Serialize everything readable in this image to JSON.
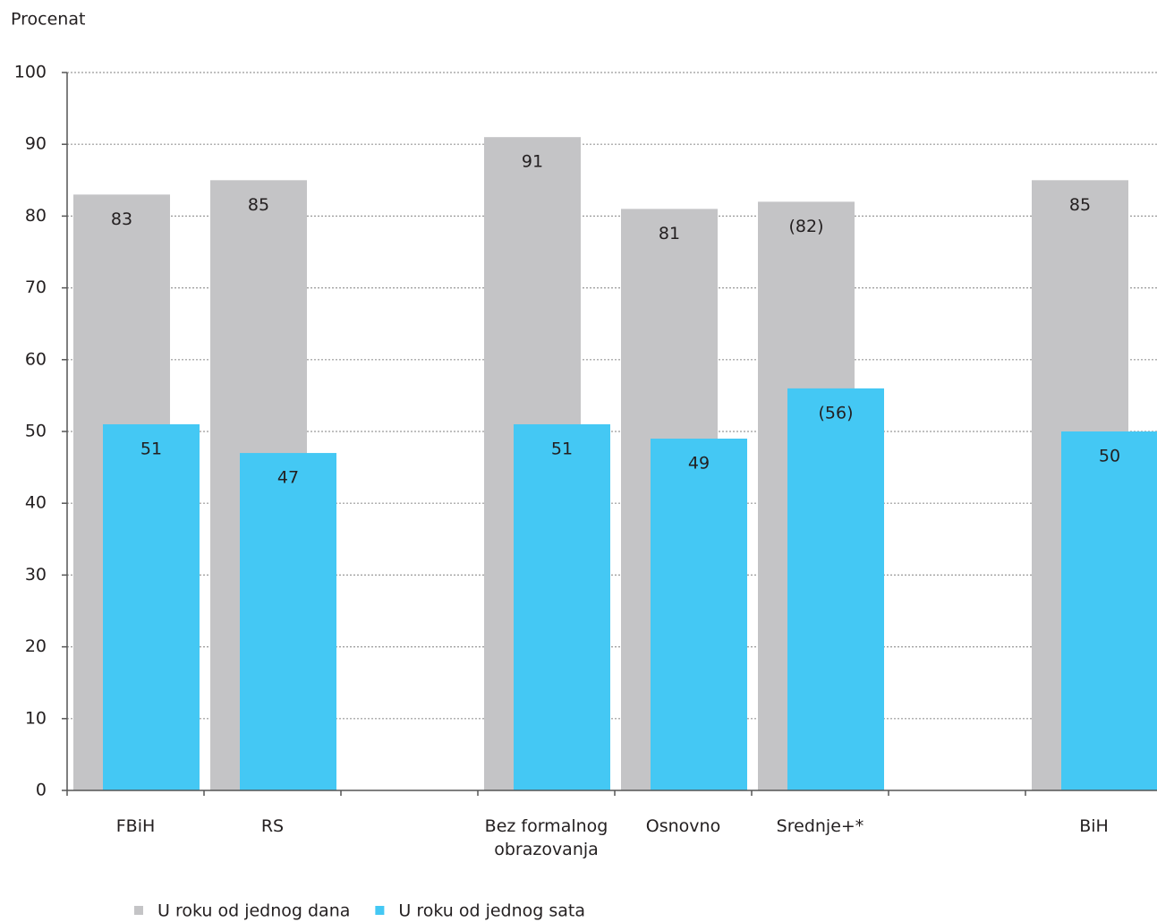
{
  "chart_data": {
    "type": "bar",
    "y_label": "Procenat",
    "categories": [
      "FBiH",
      "RS",
      null,
      "Bez formalnog obrazovanja",
      "Osnovno",
      "Srednje+*",
      null,
      "BiH"
    ],
    "series": [
      {
        "name": "U roku od jednog dana",
        "color": "#c4c4c6",
        "values": [
          83,
          85,
          null,
          91,
          81,
          82,
          null,
          85
        ],
        "value_labels": [
          "83",
          "85",
          null,
          "91",
          "81",
          "(82)",
          null,
          "85"
        ]
      },
      {
        "name": "U roku od jednog sata",
        "color": "#44c8f4",
        "values": [
          51,
          47,
          null,
          51,
          49,
          56,
          null,
          50
        ],
        "value_labels": [
          "51",
          "47",
          null,
          "51",
          "49",
          "(56)",
          null,
          "50"
        ]
      }
    ],
    "ylim": [
      0,
      100
    ],
    "yticks": [
      0,
      10,
      20,
      30,
      40,
      50,
      60,
      70,
      80,
      90,
      100
    ],
    "grid": true
  }
}
